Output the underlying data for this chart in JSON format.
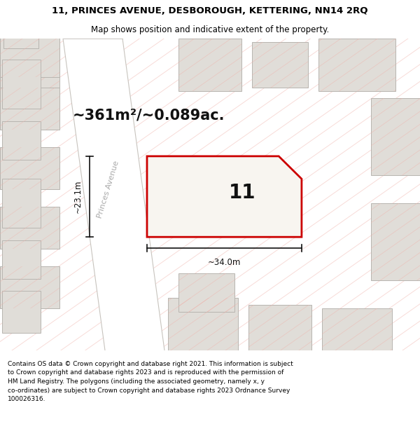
{
  "title_line1": "11, PRINCES AVENUE, DESBOROUGH, KETTERING, NN14 2RQ",
  "title_line2": "Map shows position and indicative extent of the property.",
  "area_text": "~361m²/~0.089ac.",
  "property_number": "11",
  "dim_horizontal": "~34.0m",
  "dim_vertical": "~23.1m",
  "street_label": "Princes Avenue",
  "footer_text": "Contains OS data © Crown copyright and database right 2021. This information is subject\nto Crown copyright and database rights 2023 and is reproduced with the permission of\nHM Land Registry. The polygons (including the associated geometry, namely x, y\nco-ordinates) are subject to Crown copyright and database rights 2023 Ordnance Survey\n100026316.",
  "map_bg": "#f5f3f0",
  "road_fill": "#e8e5e0",
  "building_fill": "#e0ddd8",
  "building_edge": "#b8b5b0",
  "prop_fill": "#f8f5f0",
  "prop_edge": "#cc0000",
  "hatch_color": "#f0b0a8",
  "road_line_color": "#c8c4be",
  "street_text_color": "#aaaaaa",
  "dim_color": "#111111",
  "num_color": "#111111",
  "area_color": "#111111",
  "white": "#ffffff",
  "title_fs": 9.5,
  "subtitle_fs": 8.5,
  "area_fs": 15,
  "num_fs": 20,
  "dim_fs": 8.5,
  "street_fs": 8,
  "footer_fs": 6.5
}
